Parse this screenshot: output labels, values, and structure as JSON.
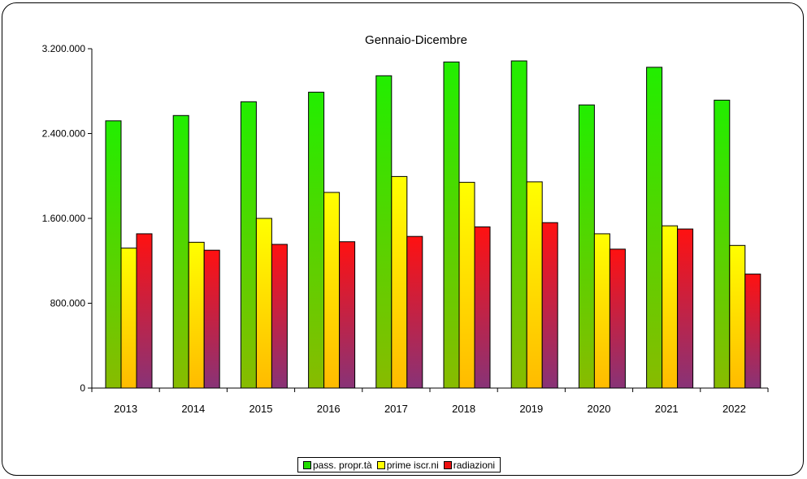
{
  "chart_data": {
    "type": "bar",
    "title": "Gennaio-Dicembre",
    "xlabel": "",
    "ylabel": "",
    "categories": [
      "2013",
      "2014",
      "2015",
      "2016",
      "2017",
      "2018",
      "2019",
      "2020",
      "2021",
      "2022"
    ],
    "series": [
      {
        "name": "pass. propr.tà",
        "color": "#22dd00",
        "values": [
          2520000,
          2570000,
          2700000,
          2790000,
          2945000,
          3075000,
          3085000,
          2670000,
          3025000,
          2715000
        ]
      },
      {
        "name": "prime iscr.ni",
        "color": "#ffff00",
        "values": [
          1320000,
          1375000,
          1600000,
          1845000,
          1995000,
          1940000,
          1945000,
          1455000,
          1530000,
          1345000
        ]
      },
      {
        "name": "radiazioni",
        "color": "#ee1111",
        "values": [
          1455000,
          1300000,
          1355000,
          1380000,
          1430000,
          1520000,
          1560000,
          1310000,
          1500000,
          1075000
        ]
      }
    ],
    "yticks": [
      "0",
      "800.000",
      "1.600.000",
      "2.400.000",
      "3.200.000"
    ],
    "ylim": [
      0,
      3200000
    ],
    "grid": false,
    "legend_position": "bottom"
  }
}
